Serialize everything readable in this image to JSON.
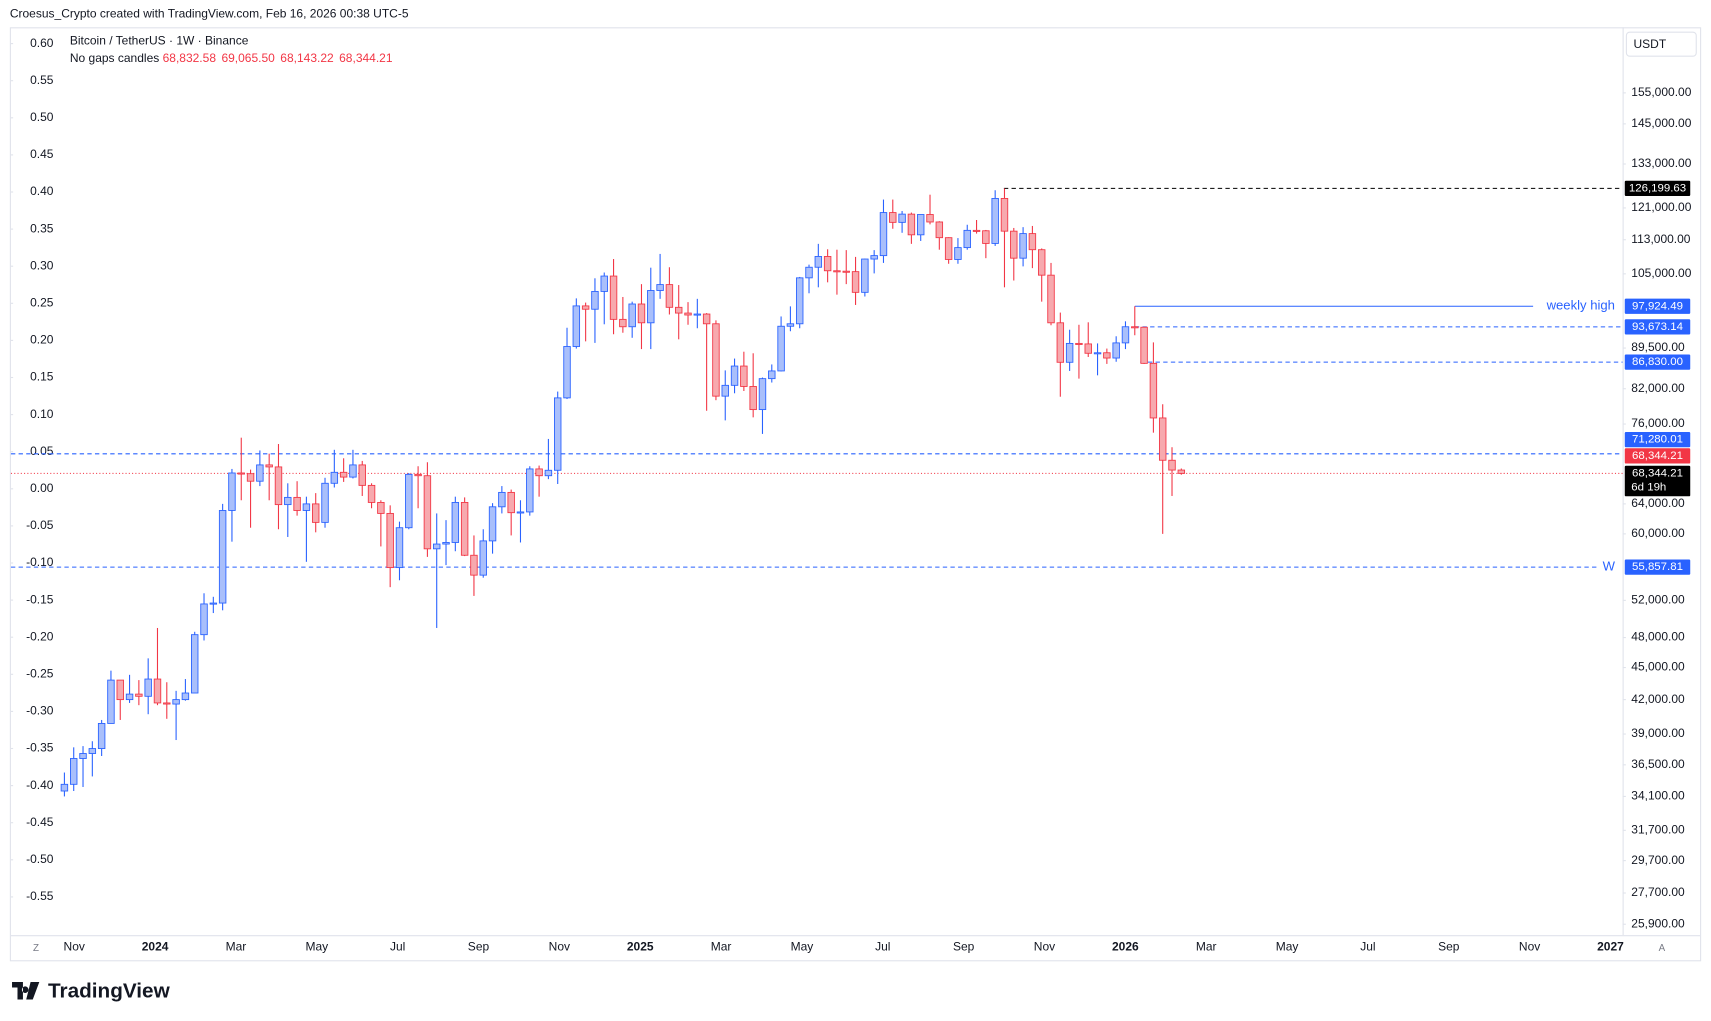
{
  "attribution": "Croesus_Crypto created with TradingView.com, Feb 16, 2026 00:38 UTC-5",
  "logo": "TradingView",
  "chart_data": {
    "type": "candlestick",
    "title": "Bitcoin / TetherUS · 1W · Binance",
    "subtitle": "No gaps candles",
    "header_values": [
      "68,832.58",
      "69,065.50",
      "68,143.22",
      "68,344.21"
    ],
    "currency": "USDT",
    "log_scale": true,
    "up_color": "#2962ff",
    "down_color": "#f23645",
    "x_axis_labels": [
      "Nov",
      "2024",
      "Mar",
      "May",
      "Jul",
      "Sep",
      "Nov",
      "2025",
      "Mar",
      "May",
      "Jul",
      "Sep",
      "Nov",
      "2026",
      "Mar",
      "May",
      "Jul",
      "Sep",
      "Nov",
      "2027"
    ],
    "open": [
      34500,
      35000,
      37000,
      37400,
      37800,
      39900,
      43800,
      42000,
      42500,
      42300,
      43900,
      41700,
      41600,
      42000,
      42600,
      48300,
      51600,
      51700,
      63100,
      68400,
      68300,
      67200,
      69600,
      69300,
      63900,
      64900,
      63100,
      64000,
      61500,
      66900,
      68500,
      67800,
      69600,
      66600,
      64200,
      62700,
      55800,
      60800,
      68200,
      68000,
      58100,
      58700,
      58900,
      64200,
      57300,
      54900,
      59100,
      63600,
      65600,
      62800,
      62900,
      69000,
      68000,
      68800,
      80400,
      89800,
      98000,
      97300,
      101100,
      104500,
      95200,
      93700,
      98400,
      94500,
      101300,
      102600,
      97700,
      96500,
      96100,
      96300,
      94300,
      80700,
      82600,
      86100,
      82400,
      78400,
      83800,
      85200,
      93800,
      94300,
      104100,
      106500,
      109000,
      105700,
      105600,
      105500,
      100900,
      108400,
      109200,
      119800,
      117300,
      119400,
      114200,
      119300,
      117400,
      113500,
      108300,
      111100,
      115300,
      115200,
      112100,
      123500,
      115100,
      108600,
      114500,
      110600,
      104700,
      94500,
      86800,
      90400,
      90300,
      88500,
      88600,
      87600,
      90500,
      93700,
      93600,
      86600,
      77000,
      70300,
      68832.58
    ],
    "high": [
      35900,
      37900,
      38000,
      38400,
      40200,
      44700,
      43800,
      44300,
      43800,
      45900,
      49000,
      43600,
      42800,
      43900,
      48600,
      52800,
      52400,
      64000,
      69000,
      73800,
      68900,
      71800,
      71300,
      72800,
      66900,
      67200,
      65000,
      65500,
      67700,
      71900,
      70600,
      71900,
      70200,
      66900,
      64500,
      63800,
      61600,
      68400,
      69400,
      70000,
      62700,
      61800,
      65000,
      64900,
      59800,
      60600,
      64100,
      66500,
      66000,
      64500,
      69400,
      69500,
      73600,
      81500,
      93500,
      99600,
      98700,
      104000,
      105300,
      108400,
      99900,
      98900,
      102700,
      106400,
      109600,
      106500,
      102500,
      98800,
      99500,
      96500,
      95000,
      85300,
      87500,
      88800,
      88500,
      84000,
      86400,
      95800,
      97900,
      104300,
      107100,
      112000,
      110700,
      110600,
      110500,
      108900,
      108500,
      110500,
      123200,
      123200,
      120200,
      119800,
      119300,
      124500,
      117600,
      113600,
      113400,
      116700,
      117900,
      115400,
      125700,
      126199.63,
      115900,
      116100,
      116400,
      110900,
      107500,
      96600,
      93100,
      94100,
      94600,
      90400,
      89400,
      91800,
      94800,
      97924.49,
      93700,
      90600,
      79300,
      72300,
      69065.5
    ],
    "low": [
      34100,
      34500,
      34800,
      35600,
      37200,
      39900,
      40200,
      41700,
      41500,
      40700,
      41500,
      40300,
      38500,
      41900,
      42600,
      47700,
      50600,
      50900,
      59000,
      64500,
      60800,
      66500,
      64500,
      60600,
      59600,
      62400,
      56500,
      60200,
      60800,
      66300,
      67100,
      67600,
      65100,
      63400,
      58400,
      53500,
      54300,
      60600,
      63400,
      57100,
      49000,
      56100,
      57800,
      57200,
      52500,
      54600,
      57500,
      62700,
      59800,
      58900,
      62400,
      65000,
      67500,
      66800,
      80200,
      89400,
      90800,
      90500,
      94200,
      92200,
      92500,
      91500,
      89300,
      89300,
      99500,
      96200,
      91200,
      94100,
      93400,
      78200,
      80000,
      76600,
      81200,
      81600,
      77100,
      74400,
      83100,
      85100,
      92800,
      93400,
      100700,
      102000,
      103100,
      100400,
      102700,
      98200,
      100000,
      105100,
      107500,
      115700,
      114700,
      112000,
      112700,
      116800,
      110600,
      107300,
      107300,
      110600,
      114500,
      108600,
      111500,
      102000,
      103500,
      106700,
      106300,
      98900,
      94000,
      80600,
      85200,
      83800,
      87800,
      84400,
      86500,
      86900,
      89300,
      92000,
      86500,
      74600,
      60000,
      65100,
      68143.22
    ],
    "close": [
      35000,
      37000,
      37400,
      37800,
      39900,
      43800,
      42000,
      42500,
      42300,
      43900,
      41700,
      41600,
      42000,
      42600,
      48300,
      51600,
      51700,
      63100,
      68400,
      68300,
      67200,
      69600,
      69300,
      63900,
      64900,
      63100,
      64000,
      61500,
      66900,
      68500,
      67800,
      69600,
      66600,
      64200,
      62700,
      55800,
      60800,
      68200,
      68000,
      58100,
      58700,
      58900,
      64200,
      57300,
      54900,
      59100,
      63600,
      65600,
      62800,
      62900,
      69000,
      68000,
      68800,
      80400,
      89800,
      98000,
      97300,
      101100,
      104500,
      95200,
      93700,
      98400,
      94500,
      101300,
      102600,
      97700,
      96500,
      96100,
      96300,
      94300,
      80700,
      82600,
      86100,
      82400,
      78400,
      83800,
      85200,
      93800,
      94300,
      104100,
      106500,
      109000,
      105700,
      105600,
      105500,
      100900,
      108400,
      109200,
      119800,
      117300,
      119400,
      114200,
      119300,
      117400,
      113500,
      108300,
      111100,
      115300,
      115200,
      112100,
      123500,
      115100,
      108600,
      114500,
      110600,
      104700,
      94500,
      86800,
      90400,
      90300,
      88500,
      88600,
      87600,
      90500,
      93700,
      93600,
      86600,
      77000,
      70300,
      68832.58,
      68344.21
    ],
    "ylim": [
      25300,
      178500
    ],
    "yticks": [
      {
        "value": 155000,
        "label": "155,000.00"
      },
      {
        "value": 145000,
        "label": "145,000.00"
      },
      {
        "value": 133000,
        "label": "133,000.00"
      },
      {
        "value": 121000,
        "label": "121,000.00"
      },
      {
        "value": 113000,
        "label": "113,000.00"
      },
      {
        "value": 105000,
        "label": "105,000.00"
      },
      {
        "value": 89500,
        "label": "89,500.00"
      },
      {
        "value": 82000,
        "label": "82,000.00"
      },
      {
        "value": 76000,
        "label": "76,000.00"
      },
      {
        "value": 64000,
        "label": "64,000.00"
      },
      {
        "value": 60000,
        "label": "60,000.00"
      },
      {
        "value": 52000,
        "label": "52,000.00"
      },
      {
        "value": 48000,
        "label": "48,000.00"
      },
      {
        "value": 45000,
        "label": "45,000.00"
      },
      {
        "value": 42000,
        "label": "42,000.00"
      },
      {
        "value": 39000,
        "label": "39,000.00"
      },
      {
        "value": 36500,
        "label": "36,500.00"
      },
      {
        "value": 34100,
        "label": "34,100.00"
      },
      {
        "value": 31700,
        "label": "31,700.00"
      },
      {
        "value": 29700,
        "label": "29,700.00"
      },
      {
        "value": 27700,
        "label": "27,700.00"
      },
      {
        "value": 25900,
        "label": "25,900.00"
      }
    ],
    "y2lim": [
      -0.6015,
      0.622
    ],
    "y2ticks": [
      {
        "value": 0.6,
        "label": "0.60"
      },
      0.55,
      {
        "value": 0.5,
        "label": "0.50"
      },
      0.45,
      {
        "value": 0.4,
        "label": "0.40"
      },
      0.35,
      {
        "value": 0.3,
        "label": "0.30"
      },
      0.25,
      {
        "value": 0.2,
        "label": "0.20"
      },
      0.15,
      {
        "value": 0.1,
        "label": "0.10"
      },
      0.05,
      {
        "value": 0,
        "label": "0.00"
      },
      -0.05,
      {
        "value": -0.1,
        "label": "-0.10"
      },
      -0.15,
      {
        "value": -0.2,
        "label": "-0.20"
      },
      -0.25,
      {
        "value": -0.3,
        "label": "-0.30"
      },
      -0.35,
      {
        "value": -0.4,
        "label": "-0.40"
      },
      -0.45,
      {
        "value": -0.5,
        "label": "-0.50"
      },
      -0.55
    ],
    "levels": [
      {
        "value": 126199.63,
        "label": "126,199.63",
        "color": "#000000",
        "style": "dashed"
      },
      {
        "value": 97924.49,
        "label": "97,924.49",
        "color": "#2962ff",
        "style": "solid",
        "text": "weekly high"
      },
      {
        "value": 93673.14,
        "label": "93,673.14",
        "color": "#2962ff",
        "style": "dashed"
      },
      {
        "value": 86830,
        "label": "86,830.00",
        "color": "#2962ff",
        "style": "dashed"
      },
      {
        "value": 71280.01,
        "label": "71,280.01",
        "color": "#2962ff",
        "style": "dashed"
      },
      {
        "value": 68344.21,
        "label": "68,344.21",
        "color": "#f23645",
        "style": "dotted"
      },
      {
        "value": 55857.81,
        "label": "55,857.81",
        "color": "#2962ff",
        "style": "dashed",
        "text": "W"
      }
    ],
    "countdown": "6d 19h"
  }
}
